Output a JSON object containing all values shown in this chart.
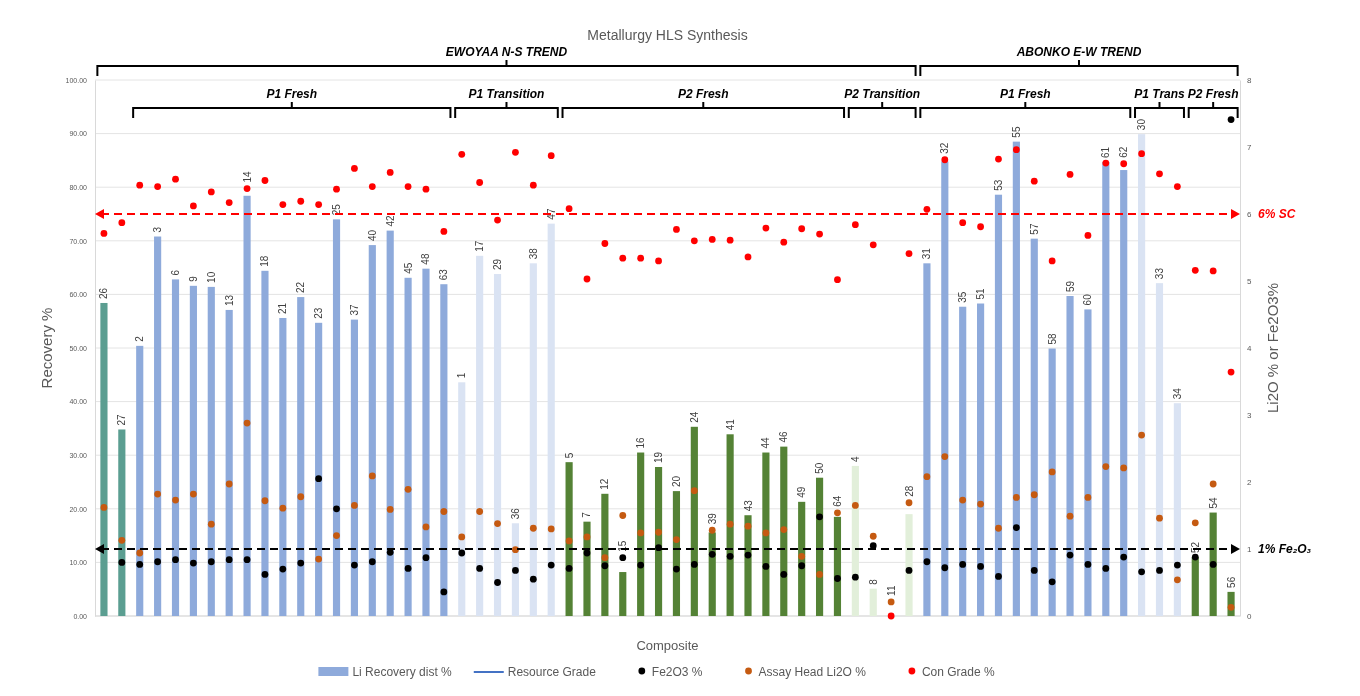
{
  "chart_data": {
    "type": "bar",
    "title": "Metallurgy HLS Synthesis",
    "xlabel": "Composite",
    "ylabel": "Recovery %",
    "y2label": "Li2O % or  Fe2O3%",
    "categories": [
      "26",
      "27",
      "2",
      "3",
      "6",
      "9",
      "10",
      "13",
      "14",
      "18",
      "21",
      "22",
      "23",
      "25",
      "37",
      "40",
      "42",
      "45",
      "48",
      "63",
      "1",
      "17",
      "29",
      "36",
      "38",
      "47",
      "5",
      "7",
      "12",
      "15",
      "16",
      "19",
      "20",
      "24",
      "39",
      "41",
      "43",
      "44",
      "46",
      "49",
      "50",
      "64",
      "4",
      "8",
      "11",
      "28",
      "31",
      "32",
      "35",
      "51",
      "53",
      "55",
      "57",
      "58",
      "59",
      "60",
      "61",
      "62",
      "30",
      "33",
      "34",
      "52",
      "54",
      "56"
    ],
    "series": [
      {
        "name": "Li Recovery dist %",
        "type": "bar",
        "color": "#8eaadb",
        "colors": [
          "#5b9e91",
          "#5b9e91",
          "#8eaadb",
          "#8eaadb",
          "#8eaadb",
          "#8eaadb",
          "#8eaadb",
          "#8eaadb",
          "#8eaadb",
          "#8eaadb",
          "#8eaadb",
          "#8eaadb",
          "#8eaadb",
          "#8eaadb",
          "#8eaadb",
          "#8eaadb",
          "#8eaadb",
          "#8eaadb",
          "#8eaadb",
          "#8eaadb",
          "#dae3f3",
          "#dae3f3",
          "#dae3f3",
          "#dae3f3",
          "#dae3f3",
          "#dae3f3",
          "#548235",
          "#548235",
          "#548235",
          "#548235",
          "#548235",
          "#548235",
          "#548235",
          "#548235",
          "#548235",
          "#548235",
          "#548235",
          "#548235",
          "#548235",
          "#548235",
          "#548235",
          "#548235",
          "#e2efda",
          "#e2efda",
          "#e2efda",
          "#e2efda",
          "#8eaadb",
          "#8eaadb",
          "#8eaadb",
          "#8eaadb",
          "#8eaadb",
          "#8eaadb",
          "#8eaadb",
          "#8eaadb",
          "#8eaadb",
          "#8eaadb",
          "#8eaadb",
          "#8eaadb",
          "#dae3f3",
          "#dae3f3",
          "#dae3f3",
          "#548235",
          "#548235",
          "#548235"
        ],
        "values": [
          58.4,
          34.8,
          50.4,
          70.8,
          62.8,
          61.6,
          61.4,
          57.1,
          78.4,
          64.4,
          55.6,
          59.5,
          54.7,
          74.0,
          55.3,
          69.2,
          71.9,
          63.1,
          64.8,
          61.9,
          43.6,
          67.2,
          63.8,
          17.3,
          65.8,
          73.2,
          28.7,
          17.6,
          22.8,
          8.2,
          30.5,
          27.8,
          23.3,
          35.3,
          15.6,
          33.9,
          18.8,
          30.5,
          31.6,
          21.3,
          25.8,
          18.5,
          28.0,
          5.1,
          0,
          19.0,
          65.8,
          84.8,
          57.7,
          58.3,
          78.6,
          88.5,
          70.4,
          49.9,
          59.7,
          57.2,
          84.7,
          83.2,
          89.9,
          62.1,
          39.7,
          11.0,
          19.3,
          4.5
        ]
      },
      {
        "name": "Resource Grade",
        "type": "line",
        "color": "#4472c4",
        "values": [
          null,
          null,
          null,
          null,
          null,
          null,
          null,
          null,
          null,
          null,
          null,
          null,
          null,
          null,
          null,
          null,
          null,
          null,
          null,
          null,
          null,
          null,
          null,
          null,
          null,
          null,
          null,
          null,
          null,
          null,
          null,
          null,
          null,
          null,
          null,
          null,
          null,
          null,
          null,
          null,
          null,
          null,
          null,
          null,
          null,
          null,
          null,
          null,
          null,
          null,
          null,
          null,
          null,
          null,
          null,
          null,
          null,
          null,
          null,
          null,
          null,
          null,
          null,
          null
        ]
      },
      {
        "name": "Fe2O3 %",
        "type": "scatter",
        "axis": "y2",
        "color": "#000000",
        "x": [
          "26",
          "27",
          "2",
          "3",
          "6",
          "9",
          "10",
          "13",
          "14",
          "18",
          "21",
          "22",
          "23",
          "25",
          "37",
          "40",
          "42",
          "45",
          "48",
          "63",
          "1",
          "17",
          "29",
          "36",
          "38",
          "47",
          "5",
          "7",
          "12",
          "15",
          "16",
          "19",
          "20",
          "24",
          "39",
          "41",
          "43",
          "44",
          "46",
          "49",
          "50",
          "64",
          "4",
          "8",
          "11",
          "28",
          "31",
          "32",
          "35",
          "51",
          "53",
          "55",
          "57",
          "58",
          "59",
          "60",
          "61",
          "62",
          "30",
          "33",
          "34",
          "52",
          "54",
          "56"
        ],
        "values": [
          null,
          0.8,
          0.77,
          0.81,
          0.84,
          0.79,
          0.81,
          0.84,
          0.84,
          0.62,
          0.7,
          0.79,
          2.05,
          1.6,
          0.76,
          0.81,
          0.95,
          0.71,
          0.87,
          0.36,
          0.94,
          0.71,
          0.5,
          0.68,
          0.55,
          0.76,
          0.71,
          0.94,
          0.75,
          0.87,
          0.76,
          1.02,
          0.7,
          0.77,
          0.92,
          0.89,
          0.91,
          0.74,
          0.62,
          0.75,
          1.48,
          0.56,
          0.58,
          1.05,
          null,
          0.68,
          0.81,
          0.72,
          0.77,
          0.74,
          0.59,
          1.32,
          0.68,
          0.51,
          0.91,
          0.77,
          0.71,
          0.88,
          0.66,
          0.68,
          0.76,
          0.88,
          0.77,
          7.41
        ]
      },
      {
        "name": "Assay Head Li2O %",
        "type": "scatter",
        "axis": "y2",
        "color": "#c55a11",
        "x": [
          "26",
          "27",
          "2",
          "3",
          "6",
          "9",
          "10",
          "13",
          "14",
          "18",
          "21",
          "22",
          "23",
          "25",
          "37",
          "40",
          "42",
          "45",
          "48",
          "63",
          "1",
          "17",
          "29",
          "36",
          "38",
          "47",
          "5",
          "7",
          "12",
          "15",
          "16",
          "19",
          "20",
          "24",
          "39",
          "41",
          "43",
          "44",
          "46",
          "49",
          "50",
          "64",
          "4",
          "8",
          "11",
          "28",
          "31",
          "32",
          "35",
          "51",
          "53",
          "55",
          "57",
          "58",
          "59",
          "60",
          "61",
          "62",
          "30",
          "33",
          "34",
          "52",
          "54",
          "56"
        ],
        "values": [
          1.62,
          1.13,
          0.94,
          1.82,
          1.73,
          1.82,
          1.37,
          1.97,
          2.88,
          1.72,
          1.61,
          1.78,
          0.85,
          1.2,
          1.65,
          2.09,
          1.59,
          1.89,
          1.33,
          1.56,
          1.18,
          1.56,
          1.38,
          0.99,
          1.31,
          1.3,
          1.12,
          1.18,
          0.87,
          1.5,
          1.24,
          1.25,
          1.14,
          1.87,
          1.28,
          1.37,
          1.34,
          1.24,
          1.29,
          0.89,
          0.62,
          1.54,
          1.65,
          1.19,
          0.21,
          1.69,
          2.08,
          2.38,
          1.73,
          1.67,
          1.31,
          1.77,
          1.81,
          2.15,
          1.49,
          1.77,
          2.23,
          2.21,
          2.7,
          1.46,
          0.54,
          1.39,
          1.97,
          0.13
        ]
      },
      {
        "name": "Con Grade %",
        "type": "scatter",
        "axis": "y2",
        "color": "#ff0000",
        "x": [
          "26",
          "27",
          "2",
          "3",
          "6",
          "9",
          "10",
          "13",
          "14",
          "18",
          "21",
          "22",
          "23",
          "25",
          "37",
          "40",
          "42",
          "45",
          "48",
          "63",
          "1",
          "17",
          "29",
          "36",
          "38",
          "47",
          "5",
          "7",
          "12",
          "15",
          "16",
          "19",
          "20",
          "24",
          "39",
          "41",
          "43",
          "44",
          "46",
          "49",
          "50",
          "64",
          "4",
          "8",
          "11",
          "28",
          "31",
          "32",
          "35",
          "51",
          "53",
          "55",
          "57",
          "58",
          "59",
          "60",
          "61",
          "62",
          "30",
          "33",
          "34",
          "52",
          "54",
          "56"
        ],
        "values": [
          5.71,
          5.87,
          6.43,
          6.41,
          6.52,
          6.12,
          6.33,
          6.17,
          6.38,
          6.5,
          6.14,
          6.19,
          6.14,
          6.37,
          6.68,
          6.41,
          6.62,
          6.41,
          6.37,
          5.74,
          6.89,
          6.47,
          5.91,
          6.92,
          6.43,
          6.87,
          6.08,
          5.03,
          5.56,
          5.34,
          5.34,
          5.3,
          5.77,
          5.6,
          5.62,
          5.61,
          5.36,
          5.79,
          5.58,
          5.78,
          5.7,
          5.02,
          5.84,
          5.54,
          0,
          5.41,
          6.07,
          6.81,
          5.87,
          5.81,
          6.82,
          6.96,
          6.49,
          5.3,
          6.59,
          5.68,
          6.76,
          6.75,
          6.9,
          6.6,
          6.41,
          5.16,
          5.15,
          3.64
        ]
      }
    ],
    "ylim": [
      0,
      100
    ],
    "yticks": [
      {
        "value": 0,
        "label": "0.00"
      },
      {
        "value": 10,
        "label": "10.00"
      },
      {
        "value": 20,
        "label": "20.00"
      },
      {
        "value": 30,
        "label": "30.00"
      },
      {
        "value": 40,
        "label": "40.00"
      },
      {
        "value": 50,
        "label": "50.00"
      },
      {
        "value": 60,
        "label": "60.00"
      },
      {
        "value": 70,
        "label": "70.00"
      },
      {
        "value": 80,
        "label": "80.00"
      },
      {
        "value": 90,
        "label": "90.00"
      },
      {
        "value": 100,
        "label": "100.00"
      }
    ],
    "y2lim": [
      0,
      8
    ],
    "y2ticks": [
      0,
      1,
      2,
      3,
      4,
      5,
      6,
      7,
      8
    ],
    "ref_lines": [
      {
        "axis": "y2",
        "value": 6,
        "label": "6% SC",
        "color": "#ff0000",
        "line_style": "dashed"
      },
      {
        "axis": "y2",
        "value": 1,
        "label": "1% Fe₂O₃",
        "color": "#000000",
        "line_style": "dashed"
      }
    ],
    "annotations": [
      "EWOYAA N-S TREND",
      "P1 Fresh",
      "P1 Transition",
      "P2 Fresh",
      "P2 Transition",
      "ABONKO E-W TREND",
      "P1 Fresh",
      "P1 Trans",
      "P2 Fresh"
    ],
    "grid": "y",
    "legend": "bottom",
    "marker": "circle"
  }
}
